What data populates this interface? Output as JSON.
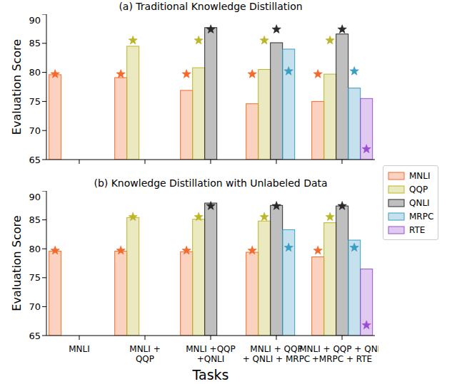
{
  "chart_data": [
    {
      "type": "bar",
      "title": "(a) Traditional Knowledge Distillation",
      "y_label": "Evaluation Score",
      "categories": [
        "MNLI",
        "MNLI +\nQQP",
        "MNLI +QQP\n+QNLI",
        "MNLI + QQP\n+ QNLI + MRPC",
        "MNLI + QQP + QNLI\n+MRPC + RTE"
      ],
      "ylim": [
        65,
        90
      ],
      "yticks": [
        65,
        70,
        75,
        80,
        85,
        90
      ],
      "grid": false,
      "tick_labels": "y",
      "legend": "right",
      "series": [
        {
          "name": "MNLI",
          "color": "#f26b2c",
          "values": [
            79.6,
            79.1,
            76.9,
            74.6,
            75.0
          ],
          "star_values": [
            79.7,
            79.7,
            79.7,
            79.7,
            79.7
          ]
        },
        {
          "name": "QQP",
          "color": "#bcb72a",
          "values": [
            null,
            84.5,
            80.8,
            80.5,
            79.7
          ],
          "star_values": [
            null,
            85.5,
            85.5,
            85.5,
            85.5
          ]
        },
        {
          "name": "QNLI",
          "color": "#2a2a2a",
          "values": [
            null,
            null,
            87.7,
            85.1,
            86.6
          ],
          "star_values": [
            null,
            null,
            87.4,
            87.4,
            87.4
          ]
        },
        {
          "name": "MRPC",
          "color": "#3a9dc4",
          "values": [
            null,
            null,
            null,
            84.0,
            77.3
          ],
          "star_values": [
            null,
            null,
            null,
            80.2,
            80.2
          ]
        },
        {
          "name": "RTE",
          "color": "#9b4fd0",
          "values": [
            null,
            null,
            null,
            null,
            75.5
          ],
          "star_values": [
            null,
            null,
            null,
            null,
            66.8
          ]
        }
      ]
    },
    {
      "type": "bar",
      "title": "(b) Knowledge Distillation with Unlabeled Data",
      "y_label": "Evaluation Score",
      "x_label": "Tasks",
      "categories": [
        "MNLI",
        "MNLI +\nQQP",
        "MNLI +QQP\n+QNLI",
        "MNLI + QQP\n+ QNLI + MRPC",
        "MNLI + QQP + QNLI\n+MRPC + RTE"
      ],
      "ylim": [
        65,
        90
      ],
      "yticks": [
        65,
        70,
        75,
        80,
        85,
        90
      ],
      "grid": false,
      "series": [
        {
          "name": "MNLI",
          "color": "#f26b2c",
          "values": [
            79.6,
            79.6,
            79.5,
            79.4,
            78.6
          ],
          "star_values": [
            79.7,
            79.7,
            79.7,
            79.7,
            79.7
          ]
        },
        {
          "name": "QQP",
          "color": "#bcb72a",
          "values": [
            null,
            85.4,
            85.1,
            84.8,
            84.5
          ],
          "star_values": [
            null,
            85.5,
            85.5,
            85.5,
            85.5
          ]
        },
        {
          "name": "QNLI",
          "color": "#2a2a2a",
          "values": [
            null,
            null,
            87.9,
            87.5,
            87.4
          ],
          "star_values": [
            null,
            null,
            87.4,
            87.4,
            87.4
          ]
        },
        {
          "name": "MRPC",
          "color": "#3a9dc4",
          "values": [
            null,
            null,
            null,
            83.3,
            81.5
          ],
          "star_values": [
            null,
            null,
            null,
            80.2,
            80.2
          ]
        },
        {
          "name": "RTE",
          "color": "#9b4fd0",
          "values": [
            null,
            null,
            null,
            null,
            76.5
          ],
          "star_values": [
            null,
            null,
            null,
            null,
            66.8
          ]
        }
      ]
    }
  ]
}
